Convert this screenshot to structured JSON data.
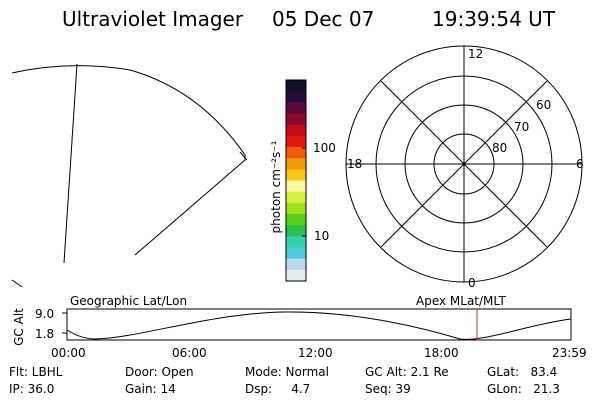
{
  "header": {
    "instrument": "Ultraviolet Imager",
    "date": "05 Dec 07",
    "time": "19:39:54 UT"
  },
  "colorbar": {
    "unit_label": "photon cm⁻²s⁻¹",
    "tick_100": "100",
    "tick_10": "10",
    "colors": [
      "#101028",
      "#2a0a3a",
      "#5a0a38",
      "#8a0a30",
      "#c40a18",
      "#e01a10",
      "#f05a0a",
      "#f09a0a",
      "#f5c81a",
      "#fbf8a0",
      "#d8f040",
      "#a0e01a",
      "#58d018",
      "#28c04a",
      "#30d0b0",
      "#50c8e0",
      "#b8dce8",
      "#e4ecef"
    ]
  },
  "polar_plot": {
    "label_top": "12",
    "label_bottom": "0",
    "label_left": "18",
    "label_right": "6",
    "lat_60": "60",
    "lat_70": "70",
    "lat_80": "80"
  },
  "timeline": {
    "left_title": "Geographic Lat/Lon",
    "right_title": "Apex  MLat/MLT",
    "y_label": "GC Alt",
    "y_max": "9.0",
    "y_min": "1.8",
    "x_ticks": [
      "00:00",
      "06:00",
      "12:00",
      "18:00",
      "23:59"
    ],
    "marker_time": "19:39:54",
    "marker_color": "#c0392b"
  },
  "info": {
    "flt": "Flt: LBHL",
    "ip": "IP: 36.0",
    "door": "Door: Open",
    "gain": "Gain: 14",
    "mode": "Mode: Normal",
    "dsp": "Dsp:     4.7",
    "gc_alt": "GC Alt: 2.1 Re",
    "seq": "Seq: 39",
    "glat": "GLat:   83.4",
    "glon": "GLon:   21.3"
  }
}
